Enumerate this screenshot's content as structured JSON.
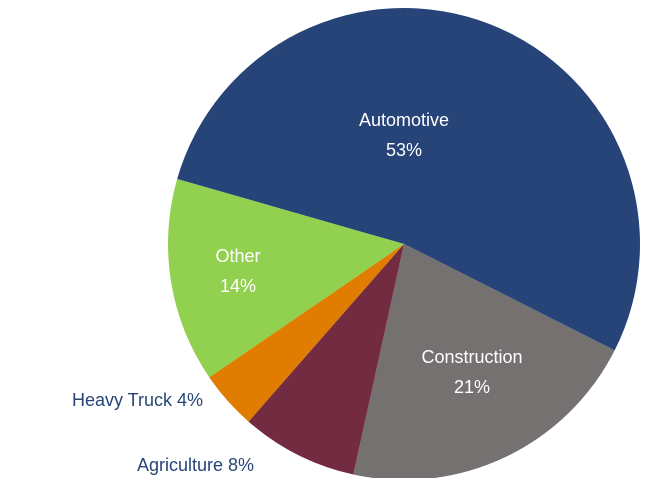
{
  "chart_data": {
    "type": "pie",
    "categories": [
      "Automotive",
      "Construction",
      "Agriculture",
      "Heavy Truck",
      "Other"
    ],
    "values": [
      53,
      21,
      8,
      4,
      14
    ],
    "value_labels": [
      "53%",
      "21%",
      "8%",
      "4%",
      "14%"
    ],
    "colors": [
      "#264478",
      "#767171",
      "#722b40",
      "#e07c00",
      "#92d050"
    ]
  }
}
